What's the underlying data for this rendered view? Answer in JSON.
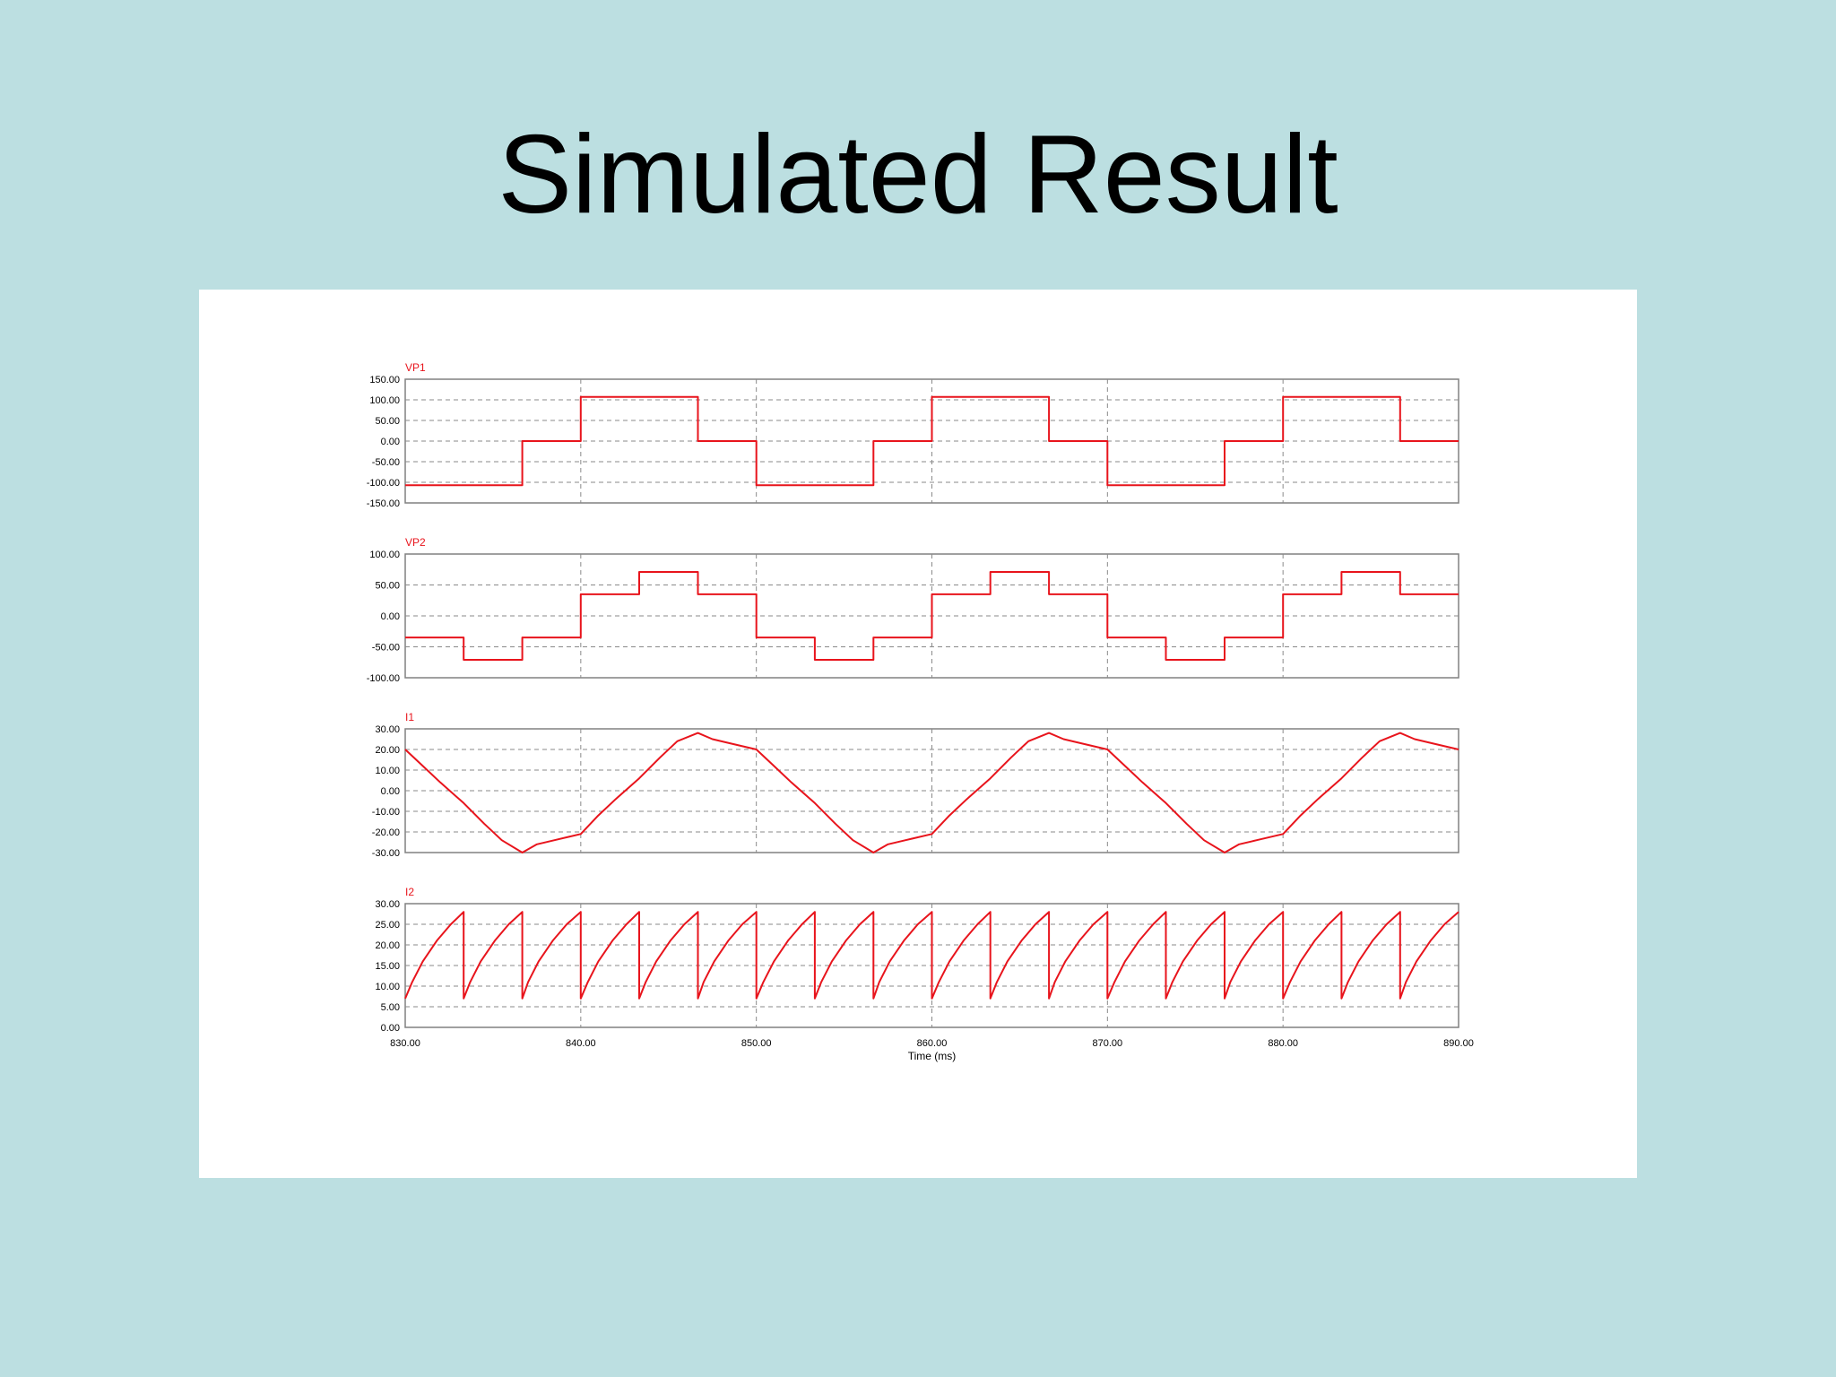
{
  "slide": {
    "title": "Simulated Result",
    "background": "#bcdfe1",
    "figure_background": "#ffffff",
    "trace_color": "#e8141c"
  },
  "x_axis": {
    "label": "Time (ms)",
    "range": [
      830,
      890
    ],
    "ticks": [
      "830.00",
      "840.00",
      "850.00",
      "860.00",
      "870.00",
      "880.00",
      "890.00"
    ]
  },
  "chart_data": [
    {
      "type": "line",
      "name": "VP1",
      "ylim": [
        -150,
        150
      ],
      "yticks": [
        "150.00",
        "100.00",
        "50.00",
        "0.00",
        "-50.00",
        "-100.00",
        "-150.00"
      ],
      "x": [
        830,
        836.67,
        836.67,
        840,
        840,
        846.67,
        846.67,
        850,
        850,
        856.67,
        856.67,
        860,
        860,
        866.67,
        866.67,
        870,
        870,
        876.67,
        876.67,
        880,
        880,
        886.67,
        886.67,
        890
      ],
      "y": [
        -107,
        -107,
        0,
        0,
        107,
        107,
        0,
        0,
        -107,
        -107,
        0,
        0,
        107,
        107,
        0,
        0,
        -107,
        -107,
        0,
        0,
        107,
        107,
        0,
        0
      ]
    },
    {
      "type": "line",
      "name": "VP2",
      "ylim": [
        -100,
        100
      ],
      "yticks": [
        "100.00",
        "50.00",
        "0.00",
        "-50.00",
        "-100.00"
      ],
      "x": [
        830,
        833.33,
        833.33,
        836.67,
        836.67,
        840,
        840,
        843.33,
        843.33,
        846.67,
        846.67,
        850,
        850,
        853.33,
        853.33,
        856.67,
        856.67,
        860,
        860,
        863.33,
        863.33,
        866.67,
        866.67,
        870,
        870,
        873.33,
        873.33,
        876.67,
        876.67,
        880,
        880,
        883.33,
        883.33,
        886.67,
        886.67,
        890
      ],
      "y": [
        -35,
        -35,
        -71,
        -71,
        -35,
        -35,
        35,
        35,
        71,
        71,
        35,
        35,
        -35,
        -35,
        -71,
        -71,
        -35,
        -35,
        35,
        35,
        71,
        71,
        35,
        35,
        -35,
        -35,
        -71,
        -71,
        -35,
        -35,
        35,
        35,
        71,
        71,
        35,
        35
      ]
    },
    {
      "type": "line",
      "name": "I1",
      "ylim": [
        -30,
        30
      ],
      "yticks": [
        "30.00",
        "20.00",
        "10.00",
        "0.00",
        "-10.00",
        "-20.00",
        "-30.00"
      ],
      "x": [
        830,
        831,
        832,
        833.33,
        834.5,
        835.5,
        836.67,
        837.5,
        838.5,
        840,
        841,
        842,
        843.33,
        844.5,
        845.5,
        846.67,
        847.5,
        848.5,
        850,
        851,
        852,
        853.33,
        854.5,
        855.5,
        856.67,
        857.5,
        858.5,
        860,
        861,
        862,
        863.33,
        864.5,
        865.5,
        866.67,
        867.5,
        868.5,
        870,
        871,
        872,
        873.33,
        874.5,
        875.5,
        876.67,
        877.5,
        878.5,
        880,
        881,
        882,
        883.33,
        884.5,
        885.5,
        886.67,
        887.5,
        888.5,
        890
      ],
      "y": [
        20,
        12,
        4,
        -6,
        -16,
        -24,
        -30,
        -26,
        -24,
        -21,
        -12,
        -4,
        6,
        16,
        24,
        28,
        25,
        23,
        20,
        12,
        4,
        -6,
        -16,
        -24,
        -30,
        -26,
        -24,
        -21,
        -12,
        -4,
        6,
        16,
        24,
        28,
        25,
        23,
        20,
        12,
        4,
        -6,
        -16,
        -24,
        -30,
        -26,
        -24,
        -21,
        -12,
        -4,
        6,
        16,
        24,
        28,
        25,
        23,
        20
      ]
    },
    {
      "type": "line",
      "name": "I2",
      "ylim": [
        0,
        30
      ],
      "yticks": [
        "30.00",
        "25.00",
        "20.00",
        "15.00",
        "10.00",
        "5.00",
        "0.00"
      ],
      "x": [
        830,
        830.4,
        831,
        831.8,
        832.6,
        833.33,
        833.33,
        833.7,
        834.3,
        835.1,
        835.9,
        836.67,
        836.67,
        837.0,
        837.6,
        838.4,
        839.2,
        840,
        840,
        840.4,
        841,
        841.8,
        842.6,
        843.33,
        843.33,
        843.7,
        844.3,
        845.1,
        845.9,
        846.67,
        846.67,
        847.0,
        847.6,
        848.4,
        849.2,
        850,
        850,
        850.4,
        851,
        851.8,
        852.6,
        853.33,
        853.33,
        853.7,
        854.3,
        855.1,
        855.9,
        856.67,
        856.67,
        857.0,
        857.6,
        858.4,
        859.2,
        860,
        860,
        860.4,
        861,
        861.8,
        862.6,
        863.33,
        863.33,
        863.7,
        864.3,
        865.1,
        865.9,
        866.67,
        866.67,
        867.0,
        867.6,
        868.4,
        869.2,
        870,
        870,
        870.4,
        871,
        871.8,
        872.6,
        873.33,
        873.33,
        873.7,
        874.3,
        875.1,
        875.9,
        876.67,
        876.67,
        877.0,
        877.6,
        878.4,
        879.2,
        880,
        880,
        880.4,
        881,
        881.8,
        882.6,
        883.33,
        883.33,
        883.7,
        884.3,
        885.1,
        885.9,
        886.67,
        886.67,
        887.0,
        887.6,
        888.4,
        889.2,
        890
      ],
      "y": [
        7,
        11,
        16,
        21,
        25,
        28,
        7,
        11,
        16,
        21,
        25,
        28,
        7,
        11,
        16,
        21,
        25,
        28,
        7,
        11,
        16,
        21,
        25,
        28,
        7,
        11,
        16,
        21,
        25,
        28,
        7,
        11,
        16,
        21,
        25,
        28,
        7,
        11,
        16,
        21,
        25,
        28,
        7,
        11,
        16,
        21,
        25,
        28,
        7,
        11,
        16,
        21,
        25,
        28,
        7,
        11,
        16,
        21,
        25,
        28,
        7,
        11,
        16,
        21,
        25,
        28,
        7,
        11,
        16,
        21,
        25,
        28,
        7,
        11,
        16,
        21,
        25,
        28,
        7,
        11,
        16,
        21,
        25,
        28,
        7,
        11,
        16,
        21,
        25,
        28,
        7,
        11,
        16,
        21,
        25,
        28,
        7,
        11,
        16,
        21,
        25,
        28,
        7,
        11,
        16,
        21,
        25,
        28
      ]
    }
  ]
}
